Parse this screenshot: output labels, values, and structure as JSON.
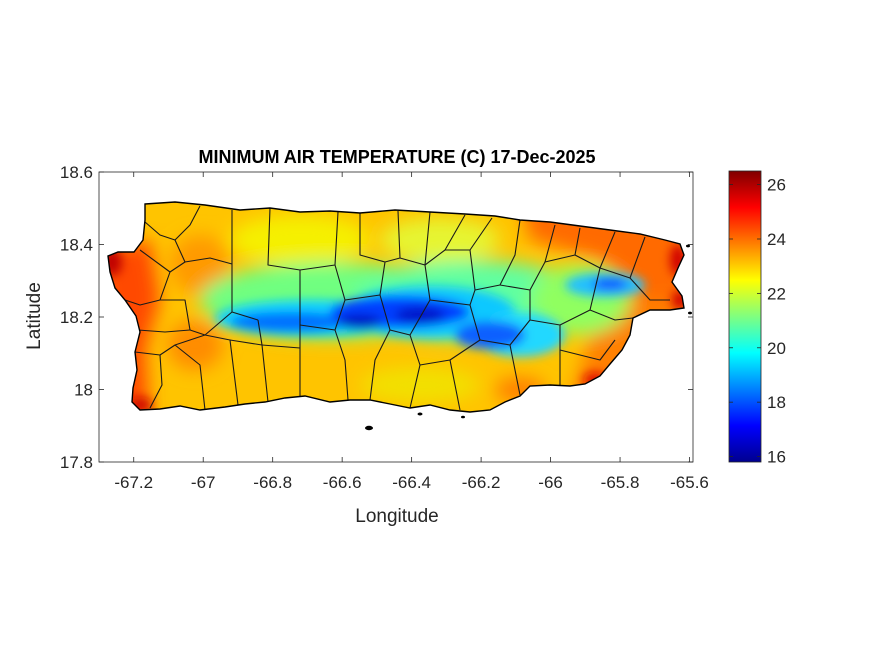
{
  "map": {
    "title": "MINIMUM AIR TEMPERATURE (C) 17-Dec-2025",
    "xlabel": "Longitude",
    "ylabel": "Latitude",
    "x_ticks": [
      "-67.2",
      "-67",
      "-66.8",
      "-66.6",
      "-66.4",
      "-66.2",
      "-66",
      "-65.8",
      "-65.6"
    ],
    "y_ticks": [
      "18.6",
      "18.4",
      "18.2",
      "18",
      "17.8"
    ],
    "colorbar_ticks": [
      "26",
      "24",
      "22",
      "20",
      "18",
      "16"
    ]
  },
  "chart_data": {
    "type": "heatmap",
    "title": "MINIMUM AIR TEMPERATURE (C) 17-Dec-2025",
    "xlabel": "Longitude",
    "ylabel": "Latitude",
    "xlim": [
      -67.3,
      -65.59
    ],
    "ylim": [
      17.8,
      18.6
    ],
    "x_tick_values": [
      -67.2,
      -67,
      -66.8,
      -66.6,
      -66.4,
      -66.2,
      -66,
      -65.8,
      -65.6
    ],
    "y_tick_values": [
      18.6,
      18.4,
      18.2,
      18,
      17.8
    ],
    "colorbar": {
      "label": "",
      "range": [
        15.8,
        26.5
      ],
      "tick_values": [
        26,
        24,
        22,
        20,
        18,
        16
      ],
      "colormap": "jet",
      "colors": [
        "#00008f",
        "#0000ff",
        "#00ffff",
        "#ffff00",
        "#ff0000",
        "#800000"
      ]
    },
    "grid": false,
    "legend": "none",
    "coastline_color": "#000000"
  }
}
